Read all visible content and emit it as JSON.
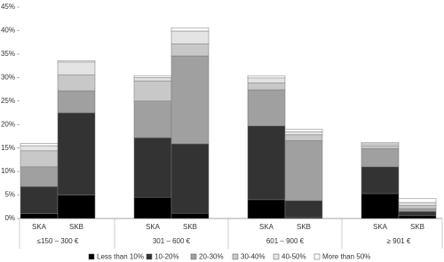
{
  "chart_data": {
    "type": "stacked-bar",
    "groups": [
      "≤150 – 300 €",
      "301 – 600 €",
      "601 – 900 €",
      "≥ 901 €"
    ],
    "categories": [
      "SKA",
      "SKB",
      "SKA",
      "SKB",
      "SKA",
      "SKB",
      "SKA",
      "SKB"
    ],
    "series": [
      {
        "name": "Less than 10%",
        "color": "#000000",
        "values": [
          1,
          5,
          4.5,
          1.1,
          4,
          0.2,
          5.3,
          0.6
        ]
      },
      {
        "name": "10-20%",
        "color": "#333333",
        "values": [
          5.8,
          17.5,
          12.7,
          14.8,
          15.7,
          3.6,
          5.7,
          0.9
        ]
      },
      {
        "name": "20-30%",
        "color": "#a0a0a0",
        "values": [
          4.2,
          4.7,
          7.8,
          18.7,
          7.7,
          12.8,
          3.9,
          0.6
        ]
      },
      {
        "name": "30-40%",
        "color": "#c8c8c8",
        "values": [
          3.4,
          3.4,
          4.3,
          2.6,
          1.5,
          1.2,
          0.6,
          0.7
        ]
      },
      {
        "name": "40-50%",
        "color": "#e4e4e4",
        "values": [
          1.1,
          2.7,
          0.7,
          2.7,
          1,
          0.7,
          0.4,
          0.6
        ]
      },
      {
        "name": "More than 50%",
        "color": "#ffffff",
        "values": [
          0.5,
          0.3,
          0.4,
          0.7,
          0.5,
          0.5,
          0.3,
          0.8
        ]
      }
    ],
    "ylim": [
      0,
      45
    ],
    "yticks": [
      {
        "value": 0,
        "label": "0%"
      },
      {
        "value": 5,
        "label": "5%"
      },
      {
        "value": 10,
        "label": "10%"
      },
      {
        "value": 15,
        "label": "15%"
      },
      {
        "value": 20,
        "label": "20%"
      },
      {
        "value": 25,
        "label": "25%"
      },
      {
        "value": 30,
        "label": "30%"
      },
      {
        "value": 35,
        "label": "35%"
      },
      {
        "value": 40,
        "label": "40%"
      },
      {
        "value": 45,
        "label": "45%"
      }
    ]
  }
}
